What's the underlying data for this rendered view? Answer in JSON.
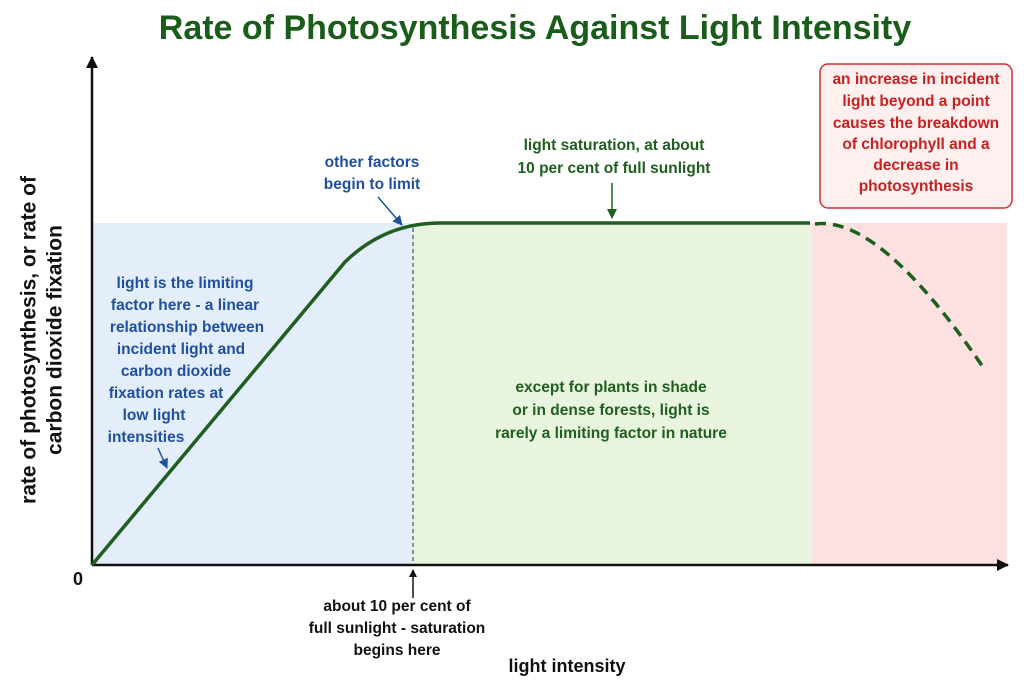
{
  "title": "Rate of Photosynthesis Against Light Intensity",
  "axes": {
    "y_label": [
      "rate of photosynthesis, or rate of",
      "carbon dioxide fixation"
    ],
    "x_label": "light intensity",
    "origin": "0"
  },
  "annotations": {
    "limiting": [
      "light is the limiting",
      "factor here - a linear",
      "relationship between",
      "incident light and",
      "carbon dioxide",
      "fixation rates at",
      "low light",
      "intensities"
    ],
    "other_factors": [
      "other factors",
      "begin to limit"
    ],
    "saturation": [
      "light saturation, at about",
      "10 per cent of full sunlight"
    ],
    "breakdown": [
      "an increase in incident",
      "light beyond a point",
      "causes the breakdown",
      "of chlorophyll and a",
      "decrease in",
      "photosynthesis"
    ],
    "nature": [
      "except for plants in shade",
      "or in dense forests, light is",
      "rarely a limiting factor in nature"
    ],
    "saturation_begins": [
      "about 10 per cent of",
      "full sunlight - saturation",
      "begins here"
    ]
  }
}
